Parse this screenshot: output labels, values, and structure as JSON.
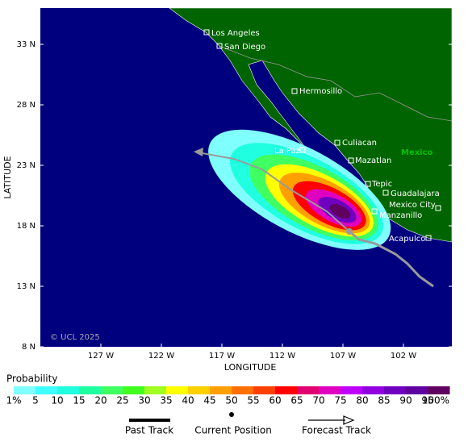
{
  "map": {
    "lat_ticks": [
      {
        "value": 33,
        "label": "33 N"
      },
      {
        "value": 28,
        "label": "28 N"
      },
      {
        "value": 23,
        "label": "23 N"
      },
      {
        "value": 18,
        "label": "18 N"
      },
      {
        "value": 13,
        "label": "13 N"
      },
      {
        "value": 8,
        "label": "8 N"
      }
    ],
    "lon_ticks": [
      {
        "value": 127,
        "label": "127 W"
      },
      {
        "value": 122,
        "label": "122 W"
      },
      {
        "value": 117,
        "label": "117 W"
      },
      {
        "value": 112,
        "label": "112 W"
      },
      {
        "value": 107,
        "label": "107 W"
      },
      {
        "value": 102,
        "label": "102 W"
      }
    ],
    "y_label": "LATITUDE",
    "x_label": "LONGITUDE",
    "country": "Mexico",
    "copyright": "© UCL 2025",
    "cities": [
      "Los Angeles",
      "San Diego",
      "Hermosillo",
      "La Paz",
      "Culiacan",
      "Mazatlan",
      "Tepic",
      "Guadalajara",
      "Mexico City",
      "Manzanillo",
      "Acapulco"
    ]
  },
  "legend": {
    "title": "Probability",
    "labels": [
      "1%",
      "5",
      "10",
      "15",
      "20",
      "25",
      "30",
      "35",
      "40",
      "45",
      "50",
      "55",
      "60",
      "65",
      "70",
      "75",
      "80",
      "85",
      "90",
      "95",
      "100%"
    ],
    "colors": [
      "#80ffff",
      "#40ffff",
      "#20ffe0",
      "#20ffa0",
      "#40ff60",
      "#40ff20",
      "#a0ff20",
      "#ffff00",
      "#ffd000",
      "#ffa000",
      "#ff7000",
      "#ff4000",
      "#ff0000",
      "#e00070",
      "#e000c0",
      "#c000ff",
      "#9000e0",
      "#7000c0",
      "#6000a0",
      "#600060"
    ],
    "past_track": "Past Track",
    "current_position": "Current Position",
    "forecast_track": "Forecast Track"
  }
}
